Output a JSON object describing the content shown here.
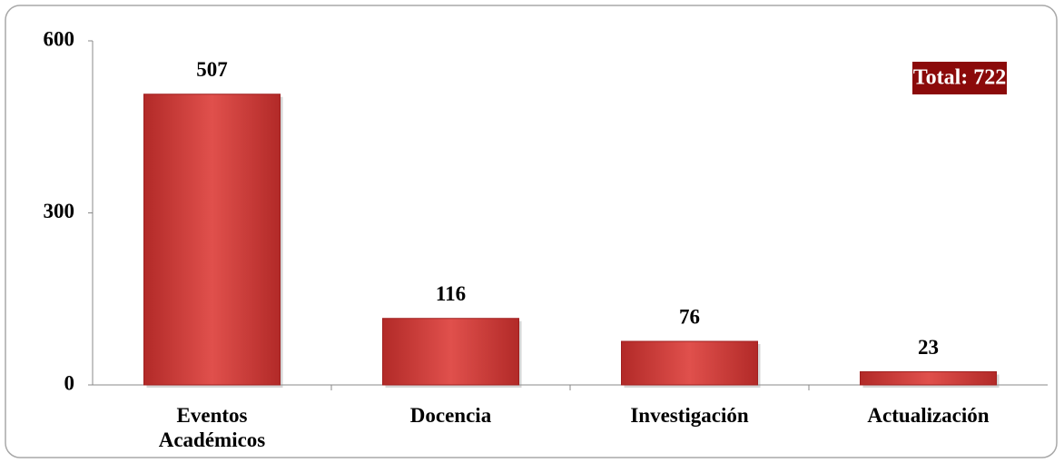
{
  "chart_data": {
    "type": "bar",
    "categories": [
      "Eventos Académicos",
      "Docencia",
      "Investigación",
      "Actualización"
    ],
    "values": [
      507,
      116,
      76,
      23
    ],
    "color": "#d63c3a",
    "ylim": [
      0,
      600
    ],
    "yticks": [
      0,
      300,
      600
    ],
    "grid": false,
    "annotation": "Total: 722"
  }
}
